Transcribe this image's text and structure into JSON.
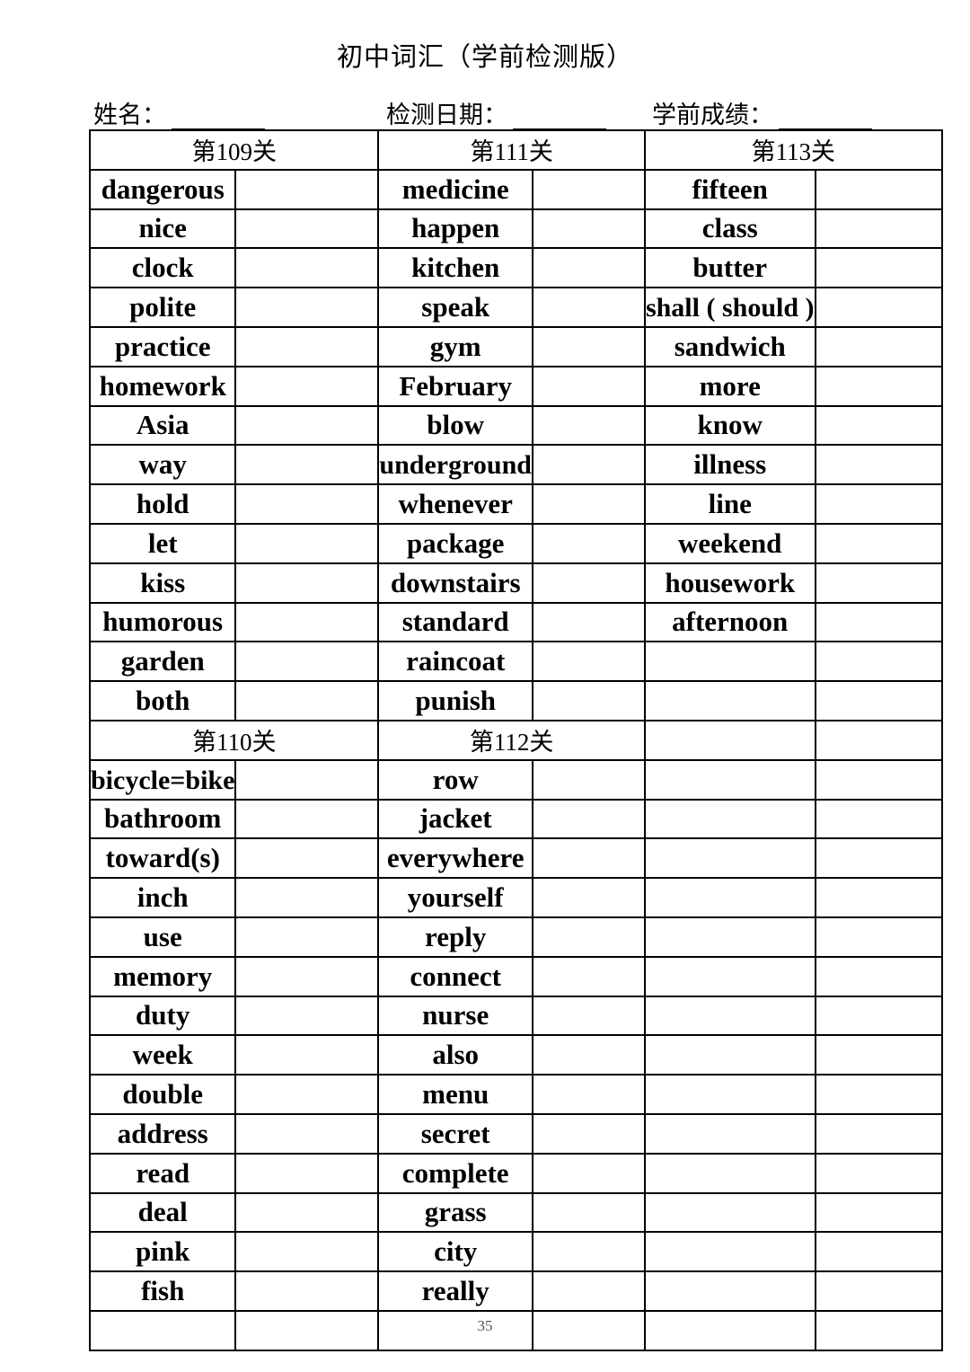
{
  "title": "初中词汇（学前检测版）",
  "fields": {
    "name": "姓名：",
    "date": "检测日期：",
    "score": "学前成绩："
  },
  "sections": {
    "s109": {
      "header": "第109关",
      "words": [
        "dangerous",
        "nice",
        "clock",
        "polite",
        "practice",
        "homework",
        "Asia",
        "way",
        "hold",
        "let",
        "kiss",
        "humorous",
        "garden",
        "both"
      ]
    },
    "s110": {
      "header": "第110关",
      "words": [
        "bicycle=bike",
        "bathroom",
        "toward(s)",
        "inch",
        "use",
        "memory",
        "duty",
        "week",
        "double",
        "address",
        "read",
        "deal",
        "pink",
        "fish"
      ]
    },
    "s111": {
      "header": "第111关",
      "words": [
        "medicine",
        "happen",
        "kitchen",
        "speak",
        "gym",
        "February",
        "blow",
        "underground",
        "whenever",
        "package",
        "downstairs",
        "standard",
        "raincoat",
        "punish"
      ]
    },
    "s112": {
      "header": "第112关",
      "words": [
        "row",
        "jacket",
        "everywhere",
        "yourself",
        "reply",
        "connect",
        "nurse",
        "also",
        "menu",
        "secret",
        "complete",
        "grass",
        "city",
        "really"
      ]
    },
    "s113": {
      "header": "第113关",
      "words": [
        "fifteen",
        "class",
        "butter",
        "shall ( should )",
        "sandwich",
        "more",
        "know",
        "illness",
        "line",
        "weekend",
        "housework",
        "afternoon"
      ]
    }
  },
  "page_number": "35"
}
